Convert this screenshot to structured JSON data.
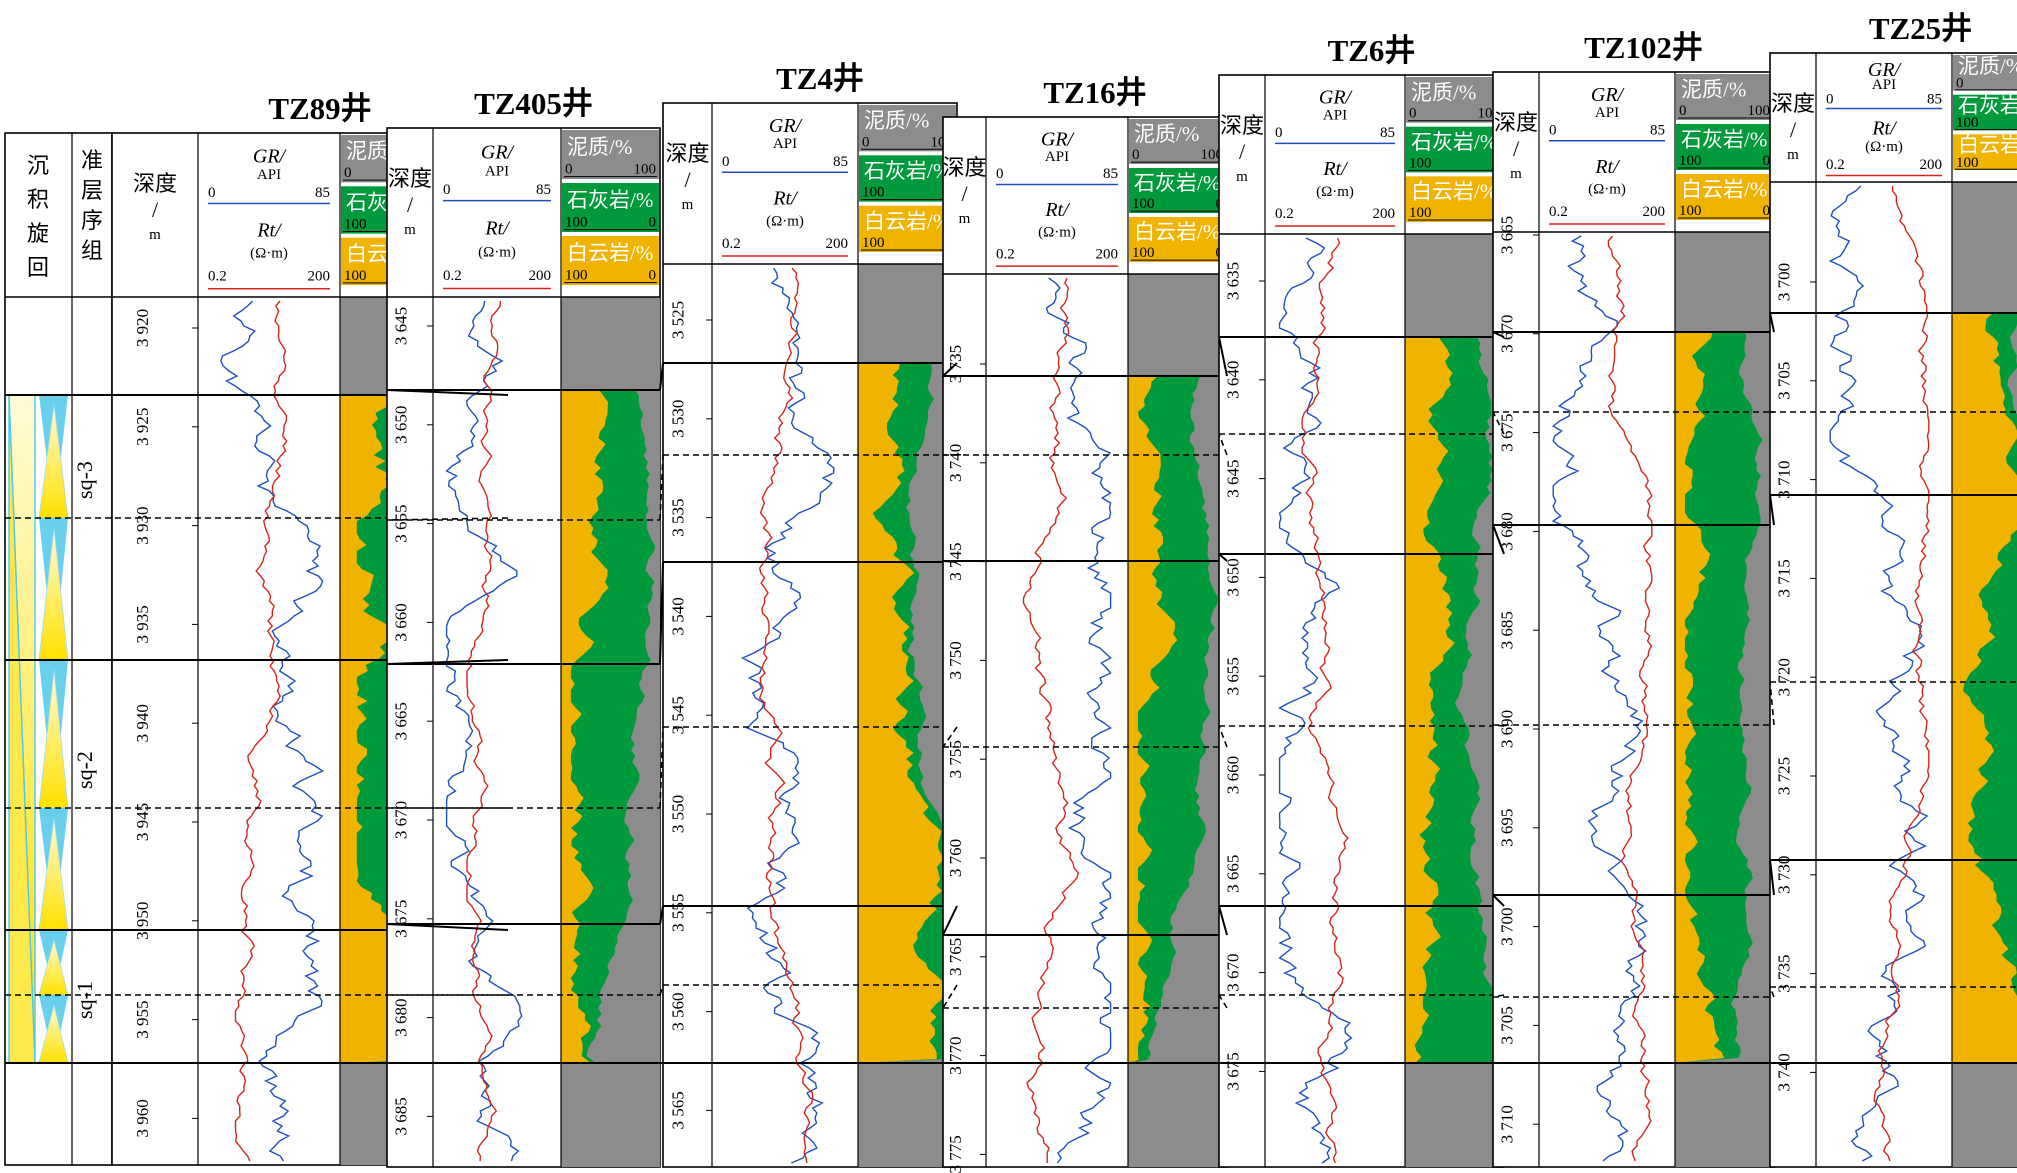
{
  "units": {
    "depth": "深度/m",
    "gr_label": "GR/",
    "gr_unit": "API",
    "gr_scale": [
      "0",
      "85"
    ],
    "rt_label": "Rt/",
    "rt_unit": "(Ω·m)",
    "rt_scale": [
      "0.2",
      "200"
    ],
    "mud": "泥质/%",
    "mud_scale": [
      "0",
      "100"
    ],
    "lime": "石灰岩/%",
    "lime_scale": [
      "100",
      "0"
    ],
    "dolo": "白云岩/%",
    "dolo_scale": [
      "100",
      "0"
    ]
  },
  "columns": {
    "cycle": "沉积旋回",
    "seq": "准层序组",
    "depth": "深度/m"
  },
  "sequences": [
    "sq-3",
    "sq-2",
    "sq-1"
  ],
  "wells": [
    {
      "name": "TZ89井",
      "ticks": [
        "3 920",
        "3 925",
        "3 930",
        "3 935",
        "3 940",
        "3 945",
        "3 950",
        "3 955",
        "3 960"
      ]
    },
    {
      "name": "TZ405井",
      "ticks": [
        "3 645",
        "3 650",
        "3 655",
        "3 660",
        "3 665",
        "3 670",
        "3 675",
        "3 680",
        "3 685"
      ]
    },
    {
      "name": "TZ4井",
      "ticks": [
        "3 525",
        "3 530",
        "3 535",
        "3 540",
        "3 545",
        "3 550",
        "3 555",
        "3 560",
        "3 565"
      ]
    },
    {
      "name": "TZ16井",
      "ticks": [
        "3 735",
        "3 740",
        "3 745",
        "3 750",
        "3 755",
        "3 760",
        "3 765",
        "3 770",
        "3 775"
      ]
    },
    {
      "name": "TZ6井",
      "ticks": [
        "3 635",
        "3 640",
        "3 645",
        "3 650",
        "3 655",
        "3 660",
        "3 665",
        "3 670",
        "3 675"
      ]
    },
    {
      "name": "TZ102井",
      "ticks": [
        "3 665",
        "3 670",
        "3 675",
        "3 680",
        "3 685",
        "3 690",
        "3 695",
        "3 700",
        "3 705",
        "3 710"
      ]
    },
    {
      "name": "TZ25井",
      "ticks": [
        "3 700",
        "3 705",
        "3 710",
        "3 715",
        "3 720",
        "3 725",
        "3 730",
        "3 735",
        "3 740"
      ]
    }
  ],
  "colors": {
    "mud": "#8c8c8c",
    "lime": "#009a3d",
    "dolo": "#f0b400",
    "gr": "#1f4fbf",
    "rt": "#d6261c",
    "cycle_light": "#fff59a",
    "cycle_dark": "#ffe100",
    "cycle_cyan": "#4ec8e8"
  }
}
